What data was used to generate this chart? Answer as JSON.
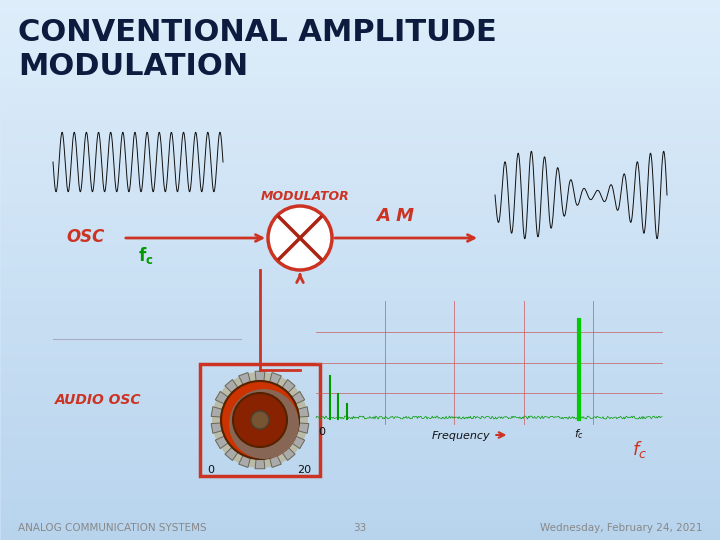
{
  "title_line1": "CONVENTIONAL AMPLITUDE",
  "title_line2": "MODULATION",
  "title_color": "#0d1b3e",
  "title_fontsize": 22,
  "footer_left": "ANALOG COMMUNICATION SYSTEMS",
  "footer_center": "33",
  "footer_right": "Wednesday, February 24, 2021",
  "footer_color": "#888888",
  "footer_fontsize": 7.5,
  "osc_label": "OSC",
  "audio_osc_label": "AUDIO OSC",
  "modulator_label": "MODULATOR",
  "am_label": "A M",
  "frequency_label": "Frequency",
  "red_color": "#cc3322",
  "red_dark": "#aa2211",
  "green_color": "#009900",
  "green_bright": "#00cc00",
  "panel_color": "#aaaaaa",
  "scope_outer": "#666666",
  "scope_bg1": "#cce0ee",
  "scope_bg2": "#cce8ee",
  "spec_bg": "#bbeebb",
  "bg_top": "#ddeeff",
  "bg_bottom": "#b8d4ee",
  "gear_bg": "#bbbbaa",
  "gear_tooth": "#999988",
  "gear_red": "#cc3300",
  "gear_shadow": "#886655"
}
